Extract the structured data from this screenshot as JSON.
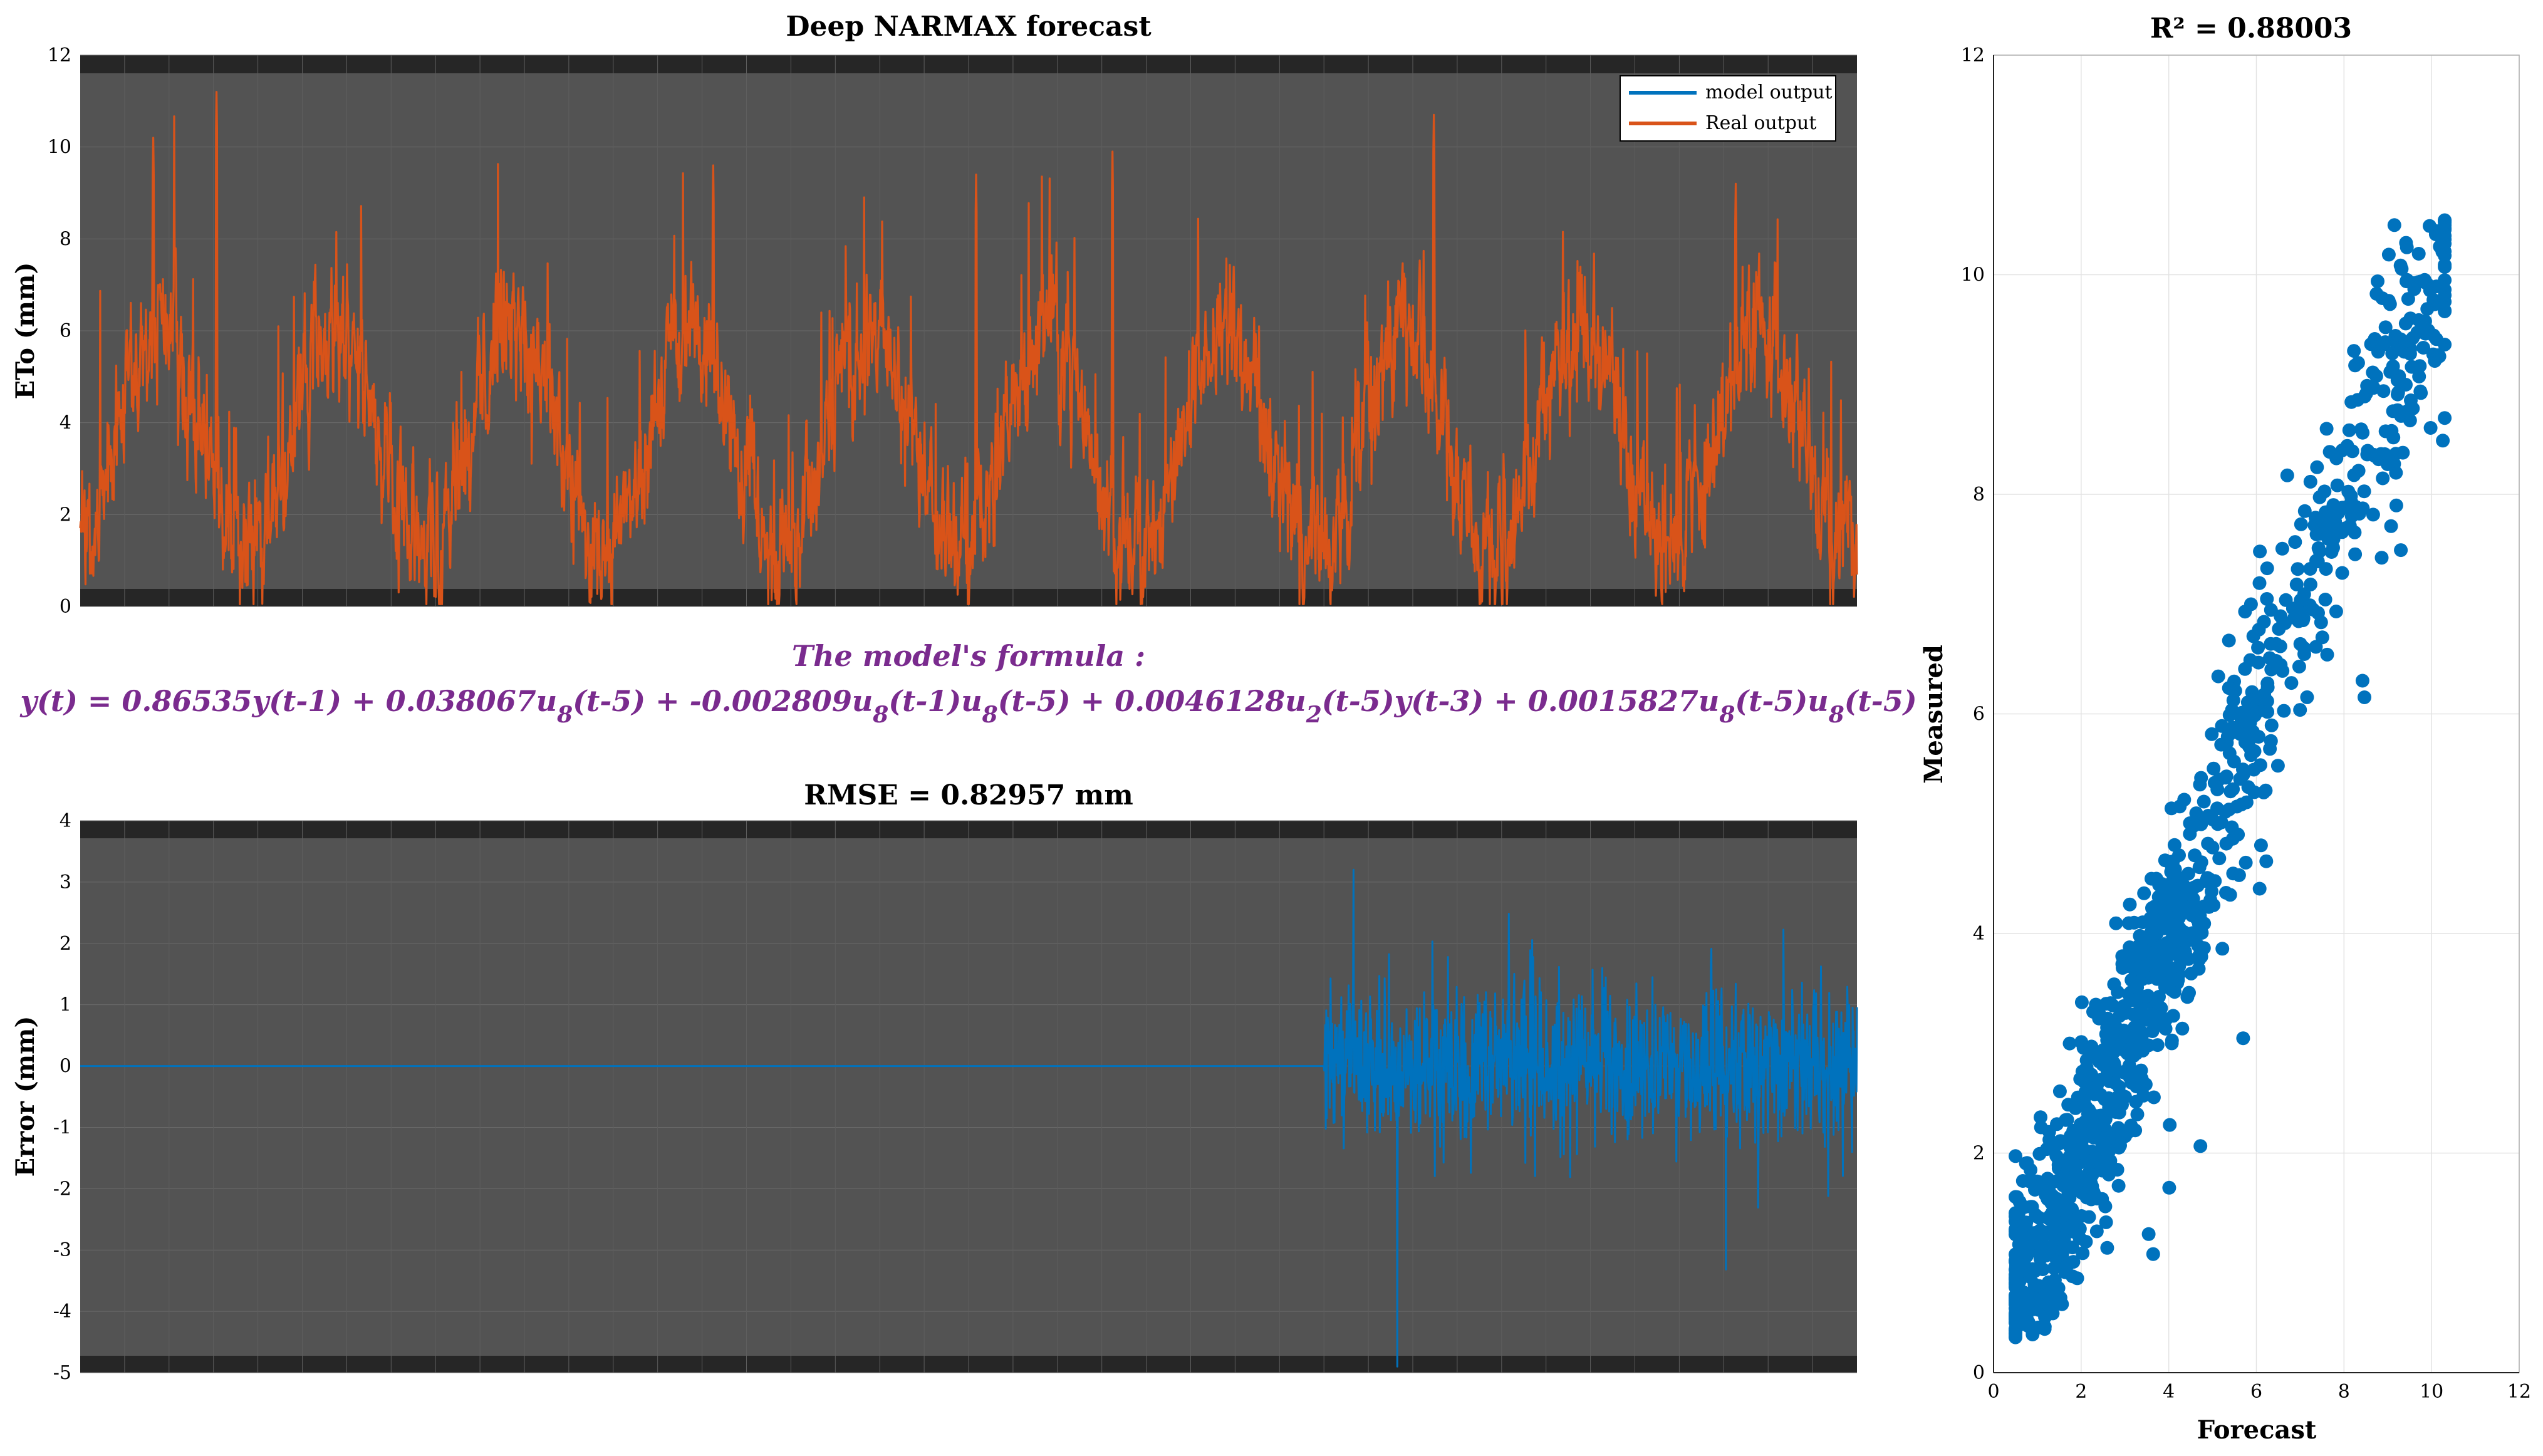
{
  "chart_data": [
    {
      "id": "forecast",
      "type": "line",
      "title": "Deep NARMAX forecast",
      "xlabel": "",
      "ylabel": "ETo (mm)",
      "ylim": [
        0,
        12
      ],
      "yticks": [
        0,
        2,
        4,
        6,
        8,
        10,
        12
      ],
      "n_points": 3650,
      "legend": {
        "position": "top-right",
        "entries": [
          "model output",
          "Real output"
        ]
      },
      "series": [
        {
          "name": "model output",
          "color": "#0072bd",
          "description": "overlaps real output"
        },
        {
          "name": "Real output",
          "color": "#d95319",
          "values_summary": {
            "min": 0,
            "max": 11.2,
            "mean": 3.6
          },
          "peaks": [
            [
              150,
              10.2
            ],
            [
              280,
              11.2
            ],
            [
              1300,
              9.6
            ],
            [
              1840,
              9.4
            ],
            [
              2120,
              9.9
            ],
            [
              2780,
              10.7
            ],
            [
              3400,
              9.2
            ]
          ]
        }
      ]
    },
    {
      "id": "error",
      "type": "line",
      "title": "RMSE = 0.82957 mm",
      "xlabel": "",
      "ylabel": "Error (mm)",
      "ylim": [
        -5,
        4
      ],
      "yticks": [
        -5,
        -4,
        -3,
        -2,
        -1,
        0,
        1,
        2,
        3,
        4
      ],
      "n_points": 3650,
      "train_end_index": 2555,
      "series": [
        {
          "name": "Error",
          "color": "#0072bd",
          "values_summary": {
            "train": 0,
            "test_min": -4.9,
            "test_max": 3.2
          }
        }
      ]
    },
    {
      "id": "scatter",
      "type": "scatter",
      "title": "R² = 0.88003",
      "xlabel": "Forecast",
      "ylabel": "Measured",
      "xlim": [
        0,
        12
      ],
      "ylim": [
        0,
        12
      ],
      "xticks": [
        0,
        2,
        4,
        6,
        8,
        10,
        12
      ],
      "yticks": [
        0,
        2,
        4,
        6,
        8,
        10,
        12
      ],
      "grid": true,
      "series": [
        {
          "name": "points",
          "color": "#0072bd",
          "n": 1100,
          "trend": {
            "slope": 1.0,
            "intercept": 0
          }
        }
      ]
    }
  ],
  "formula": {
    "heading": "The model's formula :",
    "parts": [
      {
        "t": "y(t) =   0.86535y(t-1) + 0.038067u"
      },
      {
        "s": "8"
      },
      {
        "t": "(t-5) + -0.002809u"
      },
      {
        "s": "8"
      },
      {
        "t": "(t-1)u"
      },
      {
        "s": "8"
      },
      {
        "t": "(t-5) + 0.0046128u"
      },
      {
        "s": "2"
      },
      {
        "t": "(t-5)y(t-3) + 0.0015827u"
      },
      {
        "s": "8"
      },
      {
        "t": "(t-5)u"
      },
      {
        "s": "8"
      },
      {
        "t": "(t-5)"
      }
    ]
  },
  "colors": {
    "axes_bg": "#535353",
    "band": "#262626",
    "real": "#d95319",
    "model": "#0072bd",
    "formula": "#7a2b8e"
  }
}
